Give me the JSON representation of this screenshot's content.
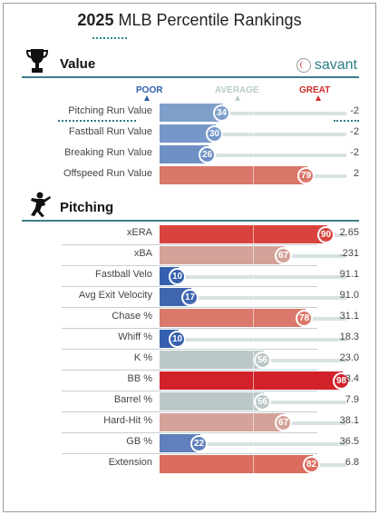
{
  "header": {
    "year": "2025",
    "title": "MLB Percentile Rankings"
  },
  "value_section": {
    "title": "Value",
    "brand": "savant",
    "icon": "trophy-icon"
  },
  "scale": {
    "poor": "POOR",
    "average": "AVERAGE",
    "great": "GREAT",
    "poor_color": "#2d5fa8",
    "average_color": "#b9cccc",
    "great_color": "#d12c2c"
  },
  "value_rows": [
    {
      "label": "Pitching Run Value",
      "percentile": "34",
      "value": "-2",
      "pct": 34,
      "color": "#7f9fcb"
    },
    {
      "label": "Fastball Run Value",
      "percentile": "30",
      "value": "-2",
      "pct": 30,
      "color": "#7698c9"
    },
    {
      "label": "Breaking Run Value",
      "percentile": "26",
      "value": "-2",
      "pct": 26,
      "color": "#6f90c4"
    },
    {
      "label": "Offspeed Run Value",
      "percentile": "79",
      "value": "2",
      "pct": 79,
      "color": "#d9776a"
    }
  ],
  "pitching_section": {
    "title": "Pitching",
    "icon": "pitcher-icon"
  },
  "pitching_rows": [
    {
      "label": "xERA",
      "percentile": "90",
      "value": "2.65",
      "pct": 90,
      "color": "#d8443d"
    },
    {
      "label": "xBA",
      "percentile": "67",
      "value": ".231",
      "pct": 67,
      "color": "#d4a299"
    },
    {
      "label": "Fastball Velo",
      "percentile": "10",
      "value": "91.1",
      "pct": 10,
      "color": "#3560ad"
    },
    {
      "label": "Avg Exit Velocity",
      "percentile": "17",
      "value": "91.0",
      "pct": 17,
      "color": "#4166b0"
    },
    {
      "label": "Chase %",
      "percentile": "78",
      "value": "31.1",
      "pct": 78,
      "color": "#d9786b"
    },
    {
      "label": "Whiff %",
      "percentile": "10",
      "value": "18.3",
      "pct": 10,
      "color": "#3560ad"
    },
    {
      "label": "K %",
      "percentile": "56",
      "value": "23.0",
      "pct": 56,
      "color": "#bcc8c8"
    },
    {
      "label": "BB %",
      "percentile": "98",
      "value": "3.4",
      "pct": 98,
      "color": "#d1222c"
    },
    {
      "label": "Barrel %",
      "percentile": "56",
      "value": "7.9",
      "pct": 56,
      "color": "#bcc8c8"
    },
    {
      "label": "Hard-Hit %",
      "percentile": "67",
      "value": "38.1",
      "pct": 67,
      "color": "#d4a299"
    },
    {
      "label": "GB %",
      "percentile": "22",
      "value": "36.5",
      "pct": 22,
      "color": "#5f7fbd"
    },
    {
      "label": "Extension",
      "percentile": "82",
      "value": "6.8",
      "pct": 82,
      "color": "#da6d60"
    }
  ]
}
